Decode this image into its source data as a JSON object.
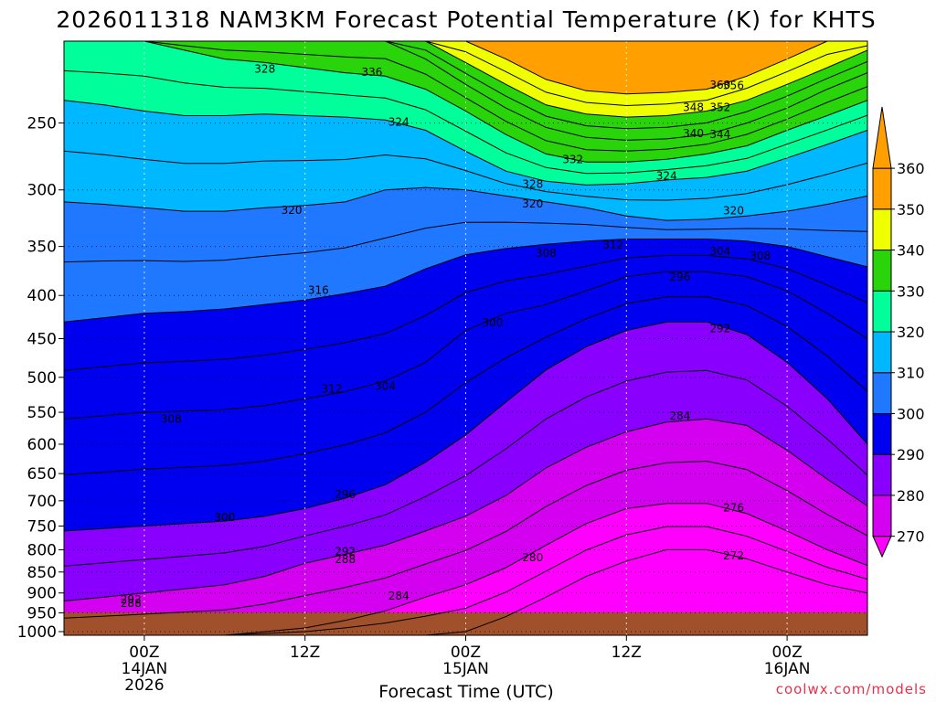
{
  "chart_data": {
    "type": "heatmap",
    "title": "2026011318 NAM3KM Forecast Potential Temperature (K) for KHTS",
    "xlabel": "Forecast Time (UTC)",
    "ylabel": "",
    "y_scale": "log-pressure",
    "ylim": [
      1010,
      200
    ],
    "xlim_hours_from_start": [
      0,
      60
    ],
    "y_ticks": [
      "250",
      "300",
      "350",
      "400",
      "450",
      "500",
      "550",
      "600",
      "650",
      "700",
      "750",
      "800",
      "850",
      "900",
      "950",
      "1000"
    ],
    "x_ticks": [
      {
        "hour": 6,
        "line1": "00Z",
        "line2": "14JAN",
        "line3": "2026"
      },
      {
        "hour": 18,
        "line1": "12Z",
        "line2": "",
        "line3": ""
      },
      {
        "hour": 30,
        "line1": "00Z",
        "line2": "15JAN",
        "line3": ""
      },
      {
        "hour": 42,
        "line1": "12Z",
        "line2": "",
        "line3": ""
      },
      {
        "hour": 54,
        "line1": "00Z",
        "line2": "16JAN",
        "line3": ""
      }
    ],
    "colorbar": {
      "levels": [
        "270",
        "280",
        "290",
        "300",
        "310",
        "320",
        "330",
        "340",
        "350",
        "360"
      ],
      "colors": [
        "#ff00ff",
        "#d400f0",
        "#8a00ff",
        "#0000f0",
        "#1f78ff",
        "#00b8ff",
        "#00ff9a",
        "#2ad40a",
        "#f0ff00",
        "#ffa000"
      ]
    },
    "contour_labels": [
      "324",
      "328",
      "336",
      "360",
      "356",
      "352",
      "348",
      "344",
      "340",
      "324",
      "332",
      "328",
      "320",
      "320",
      "324",
      "320",
      "312",
      "316",
      "308",
      "304",
      "308",
      "312",
      "300",
      "296",
      "292",
      "308",
      "304",
      "300",
      "284",
      "300",
      "276",
      "296",
      "292",
      "280",
      "272",
      "288",
      "292",
      "284",
      "288"
    ],
    "times_hours": [
      0,
      3,
      6,
      9,
      12,
      15,
      18,
      21,
      24,
      27,
      30,
      33,
      36,
      39,
      42,
      45,
      48,
      51,
      54,
      57,
      60
    ],
    "isentrope_heights_hPa": {
      "272": [
        1010,
        1010,
        1010,
        1010,
        1010,
        1010,
        1010,
        1010,
        1010,
        1010,
        1000,
        960,
        910,
        860,
        825,
        800,
        800,
        820,
        850,
        880,
        900
      ],
      "280": [
        1010,
        1010,
        1010,
        1010,
        1010,
        1000,
        990,
        970,
        945,
        910,
        880,
        840,
        790,
        745,
        715,
        705,
        705,
        725,
        760,
        800,
        835
      ],
      "288": [
        920,
        910,
        900,
        890,
        880,
        860,
        830,
        810,
        790,
        760,
        730,
        690,
        640,
        605,
        580,
        565,
        560,
        570,
        610,
        660,
        710
      ],
      "296": [
        760,
        755,
        750,
        745,
        740,
        730,
        715,
        695,
        670,
        630,
        585,
        535,
        490,
        460,
        440,
        430,
        430,
        445,
        480,
        530,
        600
      ],
      "304": [
        560,
        555,
        550,
        548,
        546,
        540,
        530,
        520,
        505,
        480,
        440,
        420,
        410,
        395,
        380,
        375,
        375,
        380,
        395,
        420,
        450
      ],
      "312": [
        430,
        425,
        420,
        418,
        415,
        410,
        405,
        398,
        390,
        372,
        358,
        352,
        348,
        345,
        343,
        343,
        343,
        345,
        350,
        360,
        370
      ],
      "320": [
        310,
        312,
        315,
        318,
        318,
        315,
        313,
        310,
        300,
        298,
        300,
        305,
        310,
        315,
        322,
        326,
        325,
        322,
        318,
        312,
        305
      ],
      "328": [
        235,
        238,
        242,
        245,
        245,
        244,
        245,
        246,
        248,
        255,
        270,
        285,
        293,
        296,
        295,
        292,
        290,
        285,
        275,
        265,
        255
      ],
      "336": [
        200,
        200,
        200,
        205,
        210,
        212,
        215,
        218,
        220,
        228,
        242,
        258,
        272,
        278,
        278,
        276,
        272,
        266,
        255,
        245,
        235
      ],
      "344": [
        200,
        200,
        200,
        200,
        200,
        200,
        200,
        200,
        200,
        210,
        225,
        240,
        253,
        260,
        262,
        261,
        258,
        250,
        240,
        228,
        218
      ],
      "352": [
        200,
        200,
        200,
        200,
        200,
        200,
        200,
        200,
        200,
        200,
        212,
        225,
        238,
        244,
        246,
        245,
        242,
        235,
        225,
        215,
        205
      ],
      "360": [
        200,
        200,
        200,
        200,
        200,
        200,
        200,
        200,
        200,
        200,
        200,
        210,
        222,
        229,
        231,
        230,
        228,
        220,
        210,
        200,
        200
      ]
    },
    "grid": true,
    "legend": "right"
  },
  "credit": "coolwx.com/models"
}
